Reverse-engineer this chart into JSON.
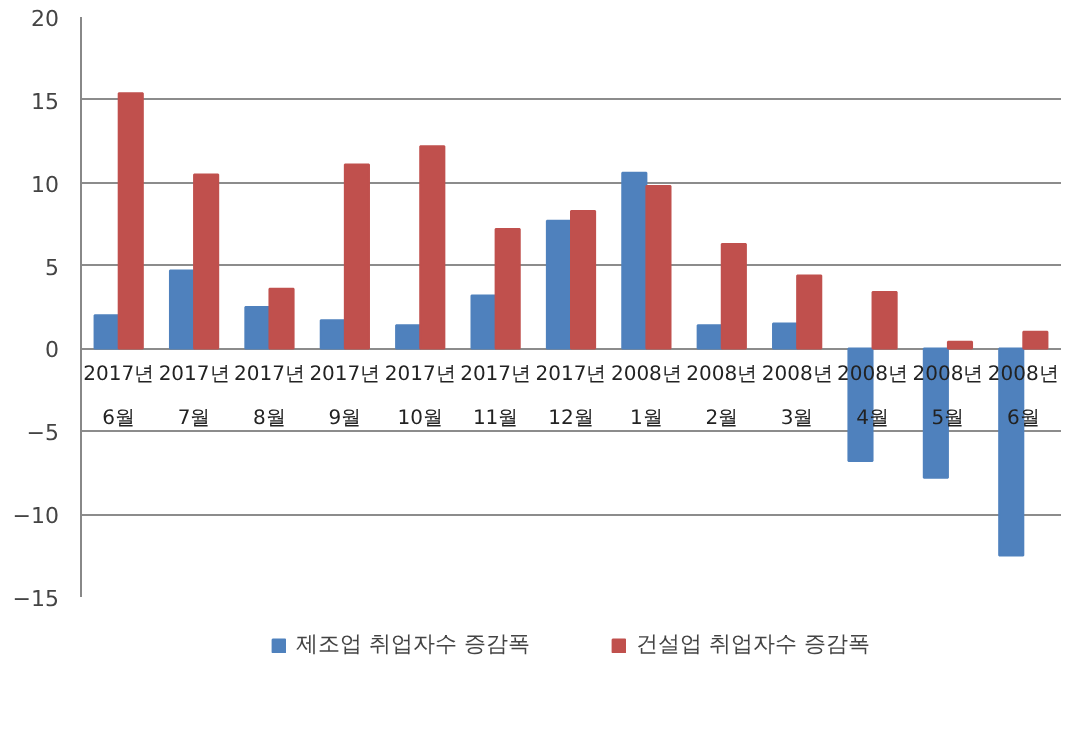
{
  "chart_data": {
    "type": "bar",
    "categories": [
      "2017년\n6월",
      "2017년\n7월",
      "2017년\n8월",
      "2017년\n9월",
      "2017년\n10월",
      "2017년\n11월",
      "2017년\n12월",
      "2008년\n1월",
      "2008년\n2월",
      "2008년\n3월",
      "2008년\n4월",
      "2008년\n5월",
      "2008년\n6월"
    ],
    "series": [
      {
        "name": "제조업 취업자수 증감폭",
        "color": "#4f81bd",
        "values": [
          2.0,
          4.7,
          2.5,
          1.7,
          1.4,
          3.2,
          7.7,
          10.6,
          1.4,
          1.5,
          -6.8,
          -7.8,
          -12.5
        ]
      },
      {
        "name": "건설업 취업자수 증감폭",
        "color": "#c0504d",
        "values": [
          15.4,
          10.5,
          3.6,
          11.1,
          12.2,
          7.2,
          8.3,
          9.8,
          6.3,
          4.4,
          3.4,
          0.4,
          1.0
        ]
      }
    ],
    "ylim": [
      -15,
      20
    ],
    "yticks": [
      -15,
      -10,
      -5,
      0,
      5,
      10,
      15,
      20
    ],
    "grid": "y",
    "legend": "bottom"
  }
}
